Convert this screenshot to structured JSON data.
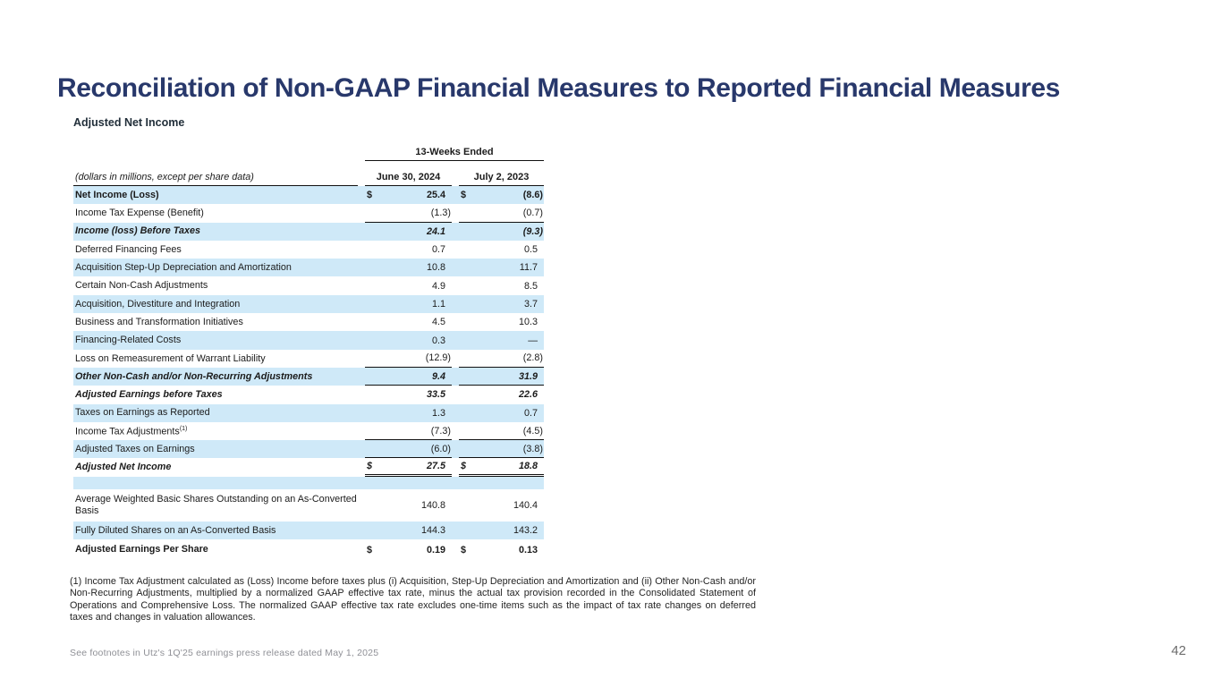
{
  "slide": {
    "title": "Reconciliation of Non-GAAP Financial Measures to Reported Financial Measures",
    "footer_note": "See footnotes in Utz's 1Q'25 earnings press release dated May 1, 2025",
    "page_number": "42"
  },
  "table": {
    "title": "Adjusted Net Income",
    "group_header": "13-Weeks Ended",
    "row_label_header": "(dollars in millions, except per share data)",
    "columns": [
      "June 30, 2024",
      "July 2, 2023"
    ],
    "currency_symbol": "$",
    "rows": [
      {
        "label": "Net Income (Loss)",
        "dollar": true,
        "v1": "25.4",
        "v2": "(8.6)",
        "emphasis": "bold",
        "shaded": true
      },
      {
        "label": "Income Tax Expense (Benefit)",
        "v1": "(1.3)",
        "v2": "(0.7)",
        "rule": "single"
      },
      {
        "label": "Income (loss) Before Taxes",
        "v1": "24.1",
        "v2": "(9.3)",
        "emphasis": "bold-italic",
        "shaded": true
      },
      {
        "label": "Deferred Financing Fees",
        "v1": "0.7",
        "v2": "0.5"
      },
      {
        "label": "Acquisition Step-Up Depreciation and Amortization",
        "v1": "10.8",
        "v2": "11.7",
        "shaded": true
      },
      {
        "label": "Certain Non-Cash Adjustments",
        "v1": "4.9",
        "v2": "8.5"
      },
      {
        "label": "Acquisition, Divestiture and Integration",
        "v1": "1.1",
        "v2": "3.7",
        "shaded": true
      },
      {
        "label": "Business and Transformation Initiatives",
        "v1": "4.5",
        "v2": "10.3"
      },
      {
        "label": "Financing-Related Costs",
        "v1": "0.3",
        "v2": "—",
        "shaded": true
      },
      {
        "label": "Loss on Remeasurement of Warrant Liability",
        "v1": "(12.9)",
        "v2": "(2.8)",
        "rule": "single"
      },
      {
        "label": "Other Non-Cash and/or Non-Recurring Adjustments",
        "v1": "9.4",
        "v2": "31.9",
        "emphasis": "bold-italic",
        "shaded": true,
        "rule": "single"
      },
      {
        "label": "Adjusted Earnings before Taxes",
        "v1": "33.5",
        "v2": "22.6",
        "emphasis": "bold-italic"
      },
      {
        "label": "Taxes on Earnings as Reported",
        "v1": "1.3",
        "v2": "0.7",
        "shaded": true
      },
      {
        "label": "Income Tax Adjustments",
        "sup": "(1)",
        "v1": "(7.3)",
        "v2": "(4.5)",
        "rule": "single"
      },
      {
        "label": "Adjusted Taxes on Earnings",
        "v1": "(6.0)",
        "v2": "(3.8)",
        "shaded": true,
        "rule": "single"
      },
      {
        "label": "Adjusted Net Income",
        "dollar": true,
        "v1": "27.5",
        "v2": "18.8",
        "emphasis": "bold-italic",
        "rule": "double"
      },
      {
        "kind": "spacer",
        "shaded": true
      },
      {
        "label": "Average Weighted Basic Shares Outstanding on an As-Converted Basis",
        "v1": "140.8",
        "v2": "140.4",
        "kind": "tall"
      },
      {
        "label": "Fully Diluted Shares on an As-Converted Basis",
        "v1": "144.3",
        "v2": "143.2",
        "shaded": true
      },
      {
        "label": "Adjusted Earnings Per Share",
        "dollar": true,
        "v1": "0.19",
        "v2": "0.13",
        "emphasis": "bold",
        "kind": "eps"
      }
    ]
  },
  "footnote": "(1) Income Tax Adjustment calculated as (Loss) Income before taxes plus (i) Acquisition, Step-Up Depreciation and Amortization and (ii) Other Non-Cash and/or Non-Recurring Adjustments, multiplied by a normalized GAAP effective tax rate, minus the actual tax provision recorded in the Consolidated Statement of Operations and Comprehensive Loss. The normalized GAAP effective tax rate excludes one-time items such as the impact of tax rate changes on deferred taxes and changes in valuation allowances.",
  "colors": {
    "accent_navy": "#28386B",
    "row_shade": "#CFE9F8",
    "rule_line": "#111111"
  }
}
